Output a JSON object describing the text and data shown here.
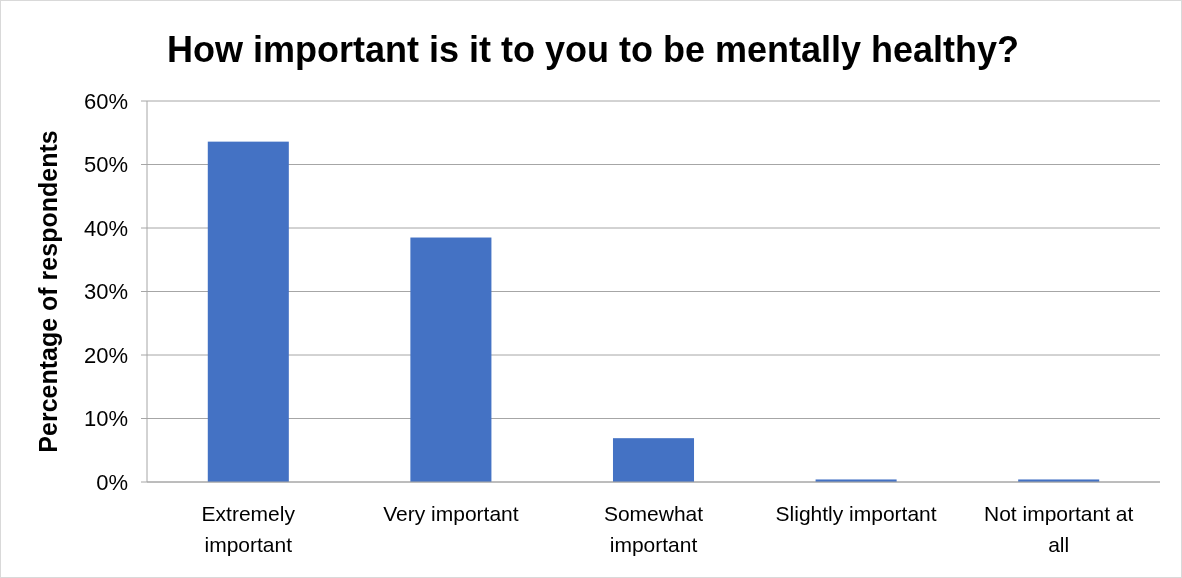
{
  "chart_data": {
    "type": "bar",
    "title": "How important is it to you to be mentally healthy?",
    "ylabel": "Percentage of respondents",
    "categories": [
      "Extremely important",
      "Very important",
      "Somewhat important",
      "Slightly important",
      "Not important at all"
    ],
    "values": [
      53.6,
      38.5,
      6.9,
      0.4,
      0.4
    ],
    "color": "#4472c4",
    "ylim": [
      0,
      60
    ],
    "yticks": [
      {
        "value": 0,
        "label": "0%"
      },
      {
        "value": 10,
        "label": "10%"
      },
      {
        "value": 20,
        "label": "20%"
      },
      {
        "value": 30,
        "label": "30%"
      },
      {
        "value": 40,
        "label": "40%"
      },
      {
        "value": 50,
        "label": "50%"
      },
      {
        "value": 60,
        "label": "60%"
      }
    ],
    "grid": "y"
  }
}
